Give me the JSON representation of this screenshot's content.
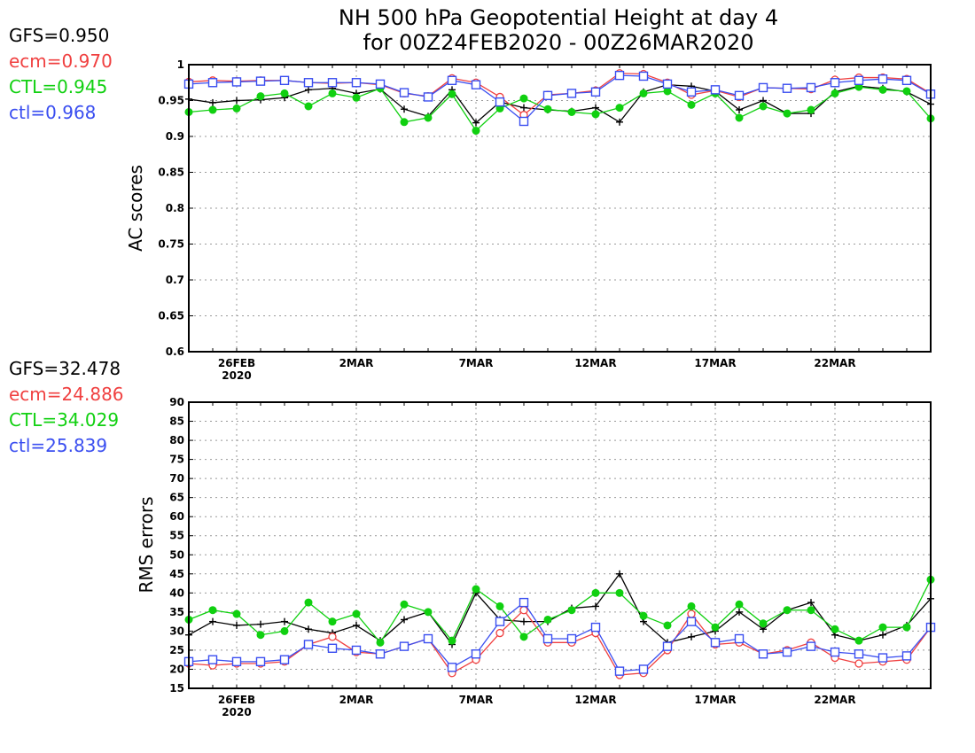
{
  "title": {
    "line1": "NH 500 hPa Geopotential Height at day 4",
    "line2": "for 00Z24FEB2020 - 00Z26MAR2020"
  },
  "colors": {
    "GFS": "#000000",
    "ecm": "#f04040",
    "CTL": "#10d010",
    "ctl": "#3a4ef0"
  },
  "ac_stats": [
    {
      "label": "GFS=0.950",
      "color": "#000000"
    },
    {
      "label": "ecm=0.970",
      "color": "#f04040"
    },
    {
      "label": "CTL=0.945",
      "color": "#10d010"
    },
    {
      "label": "ctl=0.968",
      "color": "#3a4ef0"
    }
  ],
  "rms_stats": [
    {
      "label": "GFS=32.478",
      "color": "#000000"
    },
    {
      "label": "ecm=24.886",
      "color": "#f04040"
    },
    {
      "label": "CTL=34.029",
      "color": "#10d010"
    },
    {
      "label": "ctl=25.839",
      "color": "#3a4ef0"
    }
  ],
  "chart_data": [
    {
      "type": "line",
      "ylabel": "AC scores",
      "ylim": [
        0.6,
        1.0
      ],
      "yticks": [
        "0.6",
        "0.65",
        "0.7",
        "0.75",
        "0.8",
        "0.85",
        "0.9",
        "0.95",
        "1"
      ],
      "xlim": [
        0,
        31
      ],
      "xticks": [
        {
          "label": "26FEB",
          "sub": "2020",
          "day": 2
        },
        {
          "label": "2MAR",
          "day": 7
        },
        {
          "label": "7MAR",
          "day": 12
        },
        {
          "label": "12MAR",
          "day": 17
        },
        {
          "label": "17MAR",
          "day": 22
        },
        {
          "label": "22MAR",
          "day": 27
        }
      ],
      "grid": true,
      "x": [
        0,
        1,
        2,
        3,
        4,
        5,
        6,
        7,
        8,
        9,
        10,
        11,
        12,
        13,
        14,
        15,
        16,
        17,
        18,
        19,
        20,
        21,
        22,
        23,
        24,
        25,
        26,
        27,
        28,
        29,
        30,
        31
      ],
      "series": [
        {
          "name": "GFS",
          "marker": "plus",
          "values": [
            0.952,
            0.947,
            0.95,
            0.951,
            0.954,
            0.965,
            0.967,
            0.96,
            0.966,
            0.938,
            0.928,
            0.965,
            0.919,
            0.948,
            0.94,
            0.937,
            0.935,
            0.94,
            0.92,
            0.962,
            0.972,
            0.97,
            0.963,
            0.937,
            0.95,
            0.932,
            0.932,
            0.962,
            0.97,
            0.967,
            0.962,
            0.945
          ]
        },
        {
          "name": "ecm",
          "marker": "circle",
          "values": [
            0.976,
            0.978,
            0.977,
            0.978,
            0.978,
            0.975,
            0.974,
            0.975,
            0.972,
            0.96,
            0.956,
            0.981,
            0.975,
            0.955,
            0.93,
            0.958,
            0.96,
            0.964,
            0.988,
            0.987,
            0.975,
            0.958,
            0.964,
            0.955,
            0.968,
            0.967,
            0.966,
            0.979,
            0.982,
            0.982,
            0.98,
            0.96
          ]
        },
        {
          "name": "CTL",
          "marker": "dot",
          "values": [
            0.934,
            0.937,
            0.939,
            0.956,
            0.96,
            0.942,
            0.96,
            0.954,
            0.967,
            0.92,
            0.926,
            0.959,
            0.908,
            0.939,
            0.953,
            0.938,
            0.934,
            0.931,
            0.94,
            0.96,
            0.963,
            0.944,
            0.96,
            0.926,
            0.942,
            0.932,
            0.937,
            0.96,
            0.969,
            0.965,
            0.963,
            0.925
          ]
        },
        {
          "name": "ctl",
          "marker": "square",
          "values": [
            0.973,
            0.975,
            0.976,
            0.977,
            0.978,
            0.975,
            0.975,
            0.975,
            0.973,
            0.961,
            0.955,
            0.978,
            0.972,
            0.948,
            0.921,
            0.957,
            0.96,
            0.962,
            0.985,
            0.984,
            0.973,
            0.962,
            0.965,
            0.957,
            0.968,
            0.967,
            0.968,
            0.975,
            0.978,
            0.98,
            0.978,
            0.959
          ]
        }
      ]
    },
    {
      "type": "line",
      "ylabel": "RMS errors",
      "ylim": [
        15,
        90
      ],
      "yticks": [
        "15",
        "20",
        "25",
        "30",
        "35",
        "40",
        "45",
        "50",
        "55",
        "60",
        "65",
        "70",
        "75",
        "80",
        "85",
        "90"
      ],
      "xlim": [
        0,
        31
      ],
      "xticks": [
        {
          "label": "26FEB",
          "sub": "2020",
          "day": 2
        },
        {
          "label": "2MAR",
          "day": 7
        },
        {
          "label": "7MAR",
          "day": 12
        },
        {
          "label": "12MAR",
          "day": 17
        },
        {
          "label": "17MAR",
          "day": 22
        },
        {
          "label": "22MAR",
          "day": 27
        }
      ],
      "grid": true,
      "x": [
        0,
        1,
        2,
        3,
        4,
        5,
        6,
        7,
        8,
        9,
        10,
        11,
        12,
        13,
        14,
        15,
        16,
        17,
        18,
        19,
        20,
        21,
        22,
        23,
        24,
        25,
        26,
        27,
        28,
        29,
        30,
        31
      ],
      "series": [
        {
          "name": "GFS",
          "marker": "plus",
          "values": [
            29.0,
            32.5,
            31.5,
            31.8,
            32.5,
            30.5,
            29.5,
            31.5,
            27.5,
            33.0,
            35.0,
            26.5,
            40.0,
            33.0,
            32.5,
            32.5,
            36.0,
            36.5,
            45.0,
            32.5,
            27.0,
            28.5,
            30.0,
            35.0,
            30.5,
            35.5,
            37.5,
            29.0,
            27.5,
            29.0,
            31.5,
            38.5
          ]
        },
        {
          "name": "ecm",
          "marker": "circle",
          "values": [
            21.5,
            21.0,
            21.5,
            21.5,
            22.0,
            26.5,
            28.5,
            24.5,
            24.0,
            26.0,
            28.0,
            19.0,
            22.5,
            29.5,
            35.5,
            27.0,
            27.0,
            29.5,
            18.5,
            19.0,
            25.0,
            34.5,
            26.5,
            27.0,
            24.0,
            25.0,
            27.0,
            23.0,
            21.5,
            22.0,
            22.5,
            31.0
          ]
        },
        {
          "name": "CTL",
          "marker": "dot",
          "values": [
            33.0,
            35.5,
            34.5,
            29.0,
            30.0,
            37.5,
            32.5,
            34.5,
            27.0,
            37.0,
            35.0,
            27.5,
            41.0,
            36.5,
            28.5,
            33.0,
            35.5,
            40.0,
            40.0,
            34.0,
            31.5,
            36.5,
            31.0,
            37.0,
            32.0,
            35.5,
            35.5,
            30.5,
            27.5,
            31.0,
            31.0,
            43.5
          ]
        },
        {
          "name": "ctl",
          "marker": "square",
          "values": [
            22.0,
            22.5,
            22.0,
            22.0,
            22.5,
            26.5,
            25.5,
            25.0,
            24.0,
            26.0,
            28.0,
            20.5,
            24.0,
            32.5,
            37.5,
            28.0,
            28.0,
            31.0,
            19.5,
            20.0,
            26.0,
            32.5,
            27.0,
            28.0,
            24.0,
            24.5,
            26.0,
            24.5,
            24.0,
            23.0,
            23.5,
            31.0
          ]
        }
      ]
    }
  ]
}
